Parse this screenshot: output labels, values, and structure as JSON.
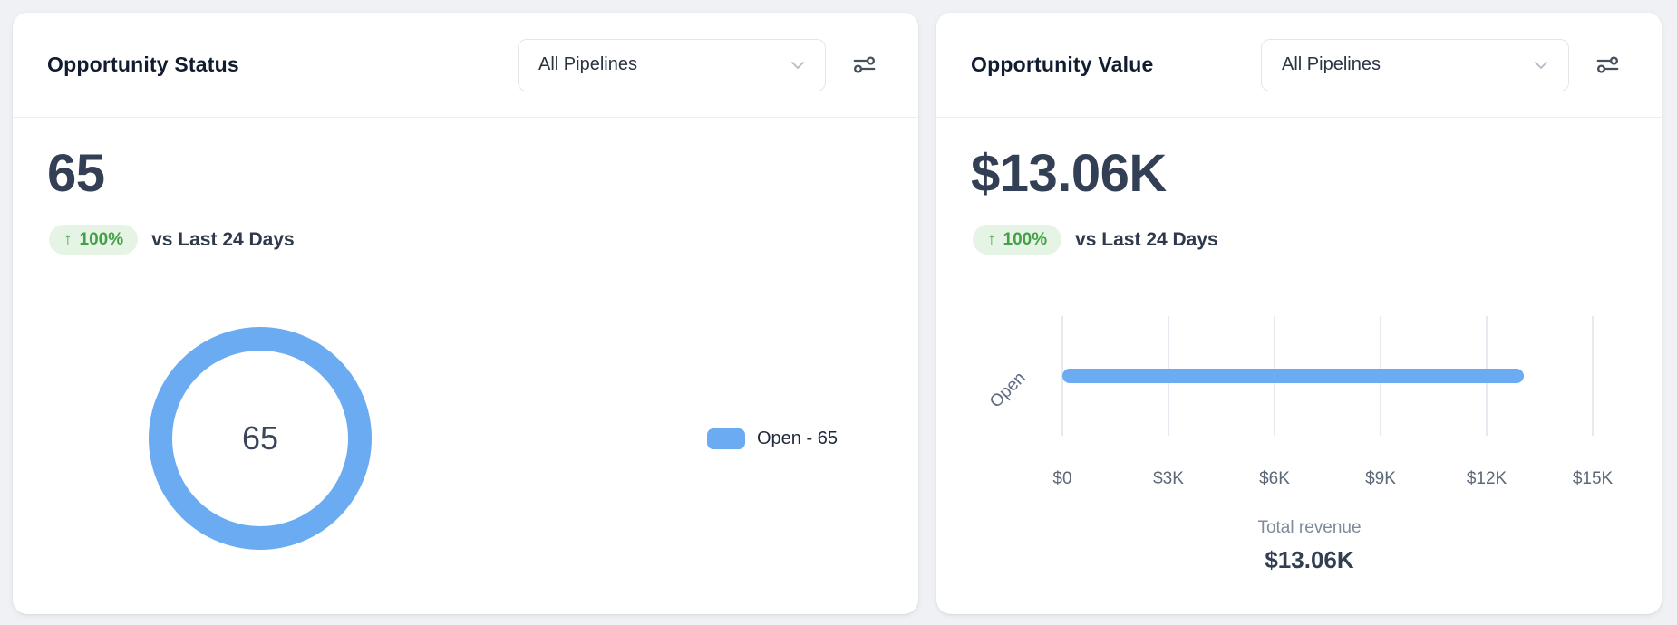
{
  "page": {
    "background_color": "#eff1f5"
  },
  "theme": {
    "accent_blue": "#6aabf2",
    "positive_green": "#43a047",
    "positive_green_bg": "#e6f4e6",
    "text_dark": "#333f54",
    "text_muted": "#5c6878"
  },
  "cards": [
    {
      "title": "Opportunity Status",
      "pipeline_select": {
        "value": "All Pipelines"
      },
      "stat": {
        "value": "65",
        "change_arrow": "↑",
        "change_badge": "100%",
        "comparison_label": "vs Last 24 Days"
      }
    },
    {
      "title": "Opportunity Value",
      "pipeline_select": {
        "value": "All Pipelines"
      },
      "stat": {
        "value": "$13.06K",
        "change_arrow": "↑",
        "change_badge": "100%",
        "comparison_label": "vs Last 24 Days"
      }
    }
  ],
  "chart_data": [
    {
      "type": "pie",
      "variant": "donut",
      "title": "Opportunity Status",
      "categories": [
        "Open"
      ],
      "values": [
        65
      ],
      "total": 65,
      "center_label": "65",
      "colors": [
        "#6aabf2"
      ],
      "legend_entries": [
        "Open - 65"
      ],
      "legend_position": "right"
    },
    {
      "type": "bar",
      "orientation": "horizontal",
      "title": "Opportunity Value",
      "categories": [
        "Open"
      ],
      "values": [
        13060
      ],
      "value_labels": [
        "$13.06K"
      ],
      "xlim": [
        0,
        15000
      ],
      "xticks": [
        "$0",
        "$3K",
        "$6K",
        "$9K",
        "$12K",
        "$15K"
      ],
      "xtick_values": [
        0,
        3000,
        6000,
        9000,
        12000,
        15000
      ],
      "grid": true,
      "bar_color": "#6aabf2",
      "footer_label": "Total revenue",
      "footer_value": "$13.06K"
    }
  ]
}
